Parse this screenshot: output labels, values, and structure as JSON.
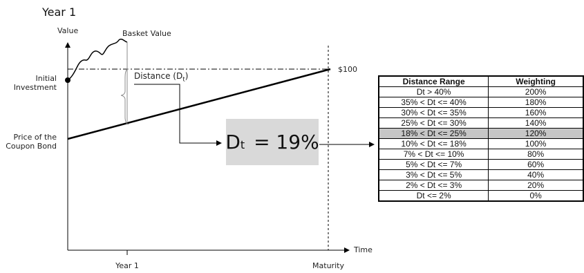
{
  "title": "Year 1",
  "axes": {
    "y_label": "Value",
    "x_label": "Time",
    "x_ticks": [
      "Year 1",
      "Maturity"
    ]
  },
  "labels": {
    "basket_value": "Basket Value",
    "initial_investment": [
      "Initial",
      "Investment"
    ],
    "coupon_bond": [
      "Price of the",
      "Coupon Bond"
    ],
    "distance_prefix": "Distance (D",
    "distance_sub": "t",
    "distance_suffix": ")",
    "target_value": "$100"
  },
  "dt_result": {
    "symbol": "D",
    "subscript": "t",
    "equals": " = 19%"
  },
  "table": {
    "headers": [
      "Distance Range",
      "Weighting"
    ],
    "highlight_index": 4,
    "rows": [
      [
        "Dt > 40%",
        "200%"
      ],
      [
        "35% < Dt <= 40%",
        "180%"
      ],
      [
        "30% < Dt <= 35%",
        "160%"
      ],
      [
        "25% < Dt <= 30%",
        "140%"
      ],
      [
        "18% < Dt <= 25%",
        "120%"
      ],
      [
        "10% < Dt <= 18%",
        "100%"
      ],
      [
        "7% < Dt <= 10%",
        "80%"
      ],
      [
        "5% < Dt <= 7%",
        "60%"
      ],
      [
        "3% < Dt <= 5%",
        "40%"
      ],
      [
        "2% < Dt <= 3%",
        "20%"
      ],
      [
        "Dt <= 2%",
        "0%"
      ]
    ]
  },
  "colors": {
    "result_box": "#d9d9d9",
    "highlight_row": "#c6c6c6"
  }
}
